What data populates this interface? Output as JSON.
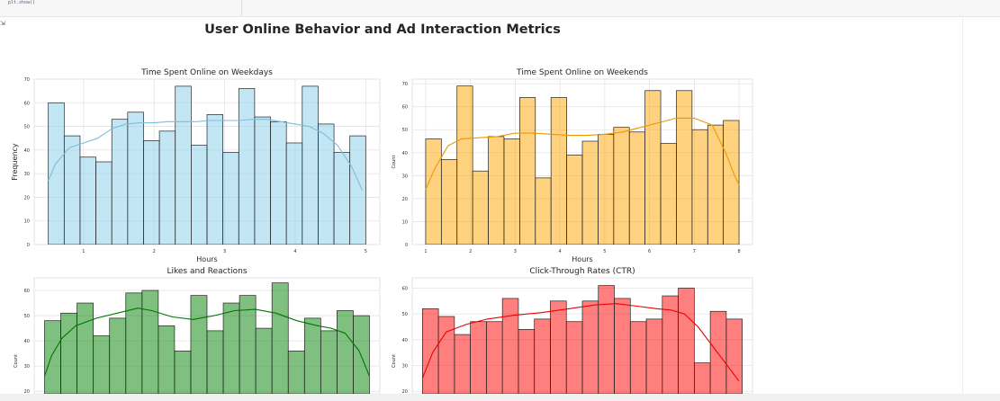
{
  "notebook": {
    "code_line": "plt.show()",
    "output_icon": "output-icon"
  },
  "figure": {
    "title": "User Online Behavior and Ad Interaction Metrics"
  },
  "colors": {
    "weekday": "#87ceeb",
    "weekend": "#ffa500",
    "likes": "#008000",
    "ctr": "#ff0000"
  },
  "chart_data": [
    {
      "type": "bar",
      "title": "Time Spent Online on Weekdays",
      "xlabel": "Hours",
      "ylabel": "Frequency",
      "xlim": [
        0.3,
        5.2
      ],
      "ylim": [
        0,
        70
      ],
      "xticks": [
        1,
        2,
        3,
        4,
        5
      ],
      "yticks": [
        0,
        10,
        20,
        30,
        40,
        50,
        60,
        70
      ],
      "bin_range": [
        0.5,
        5.0
      ],
      "values": [
        60,
        46,
        37,
        35,
        53,
        56,
        44,
        48,
        67,
        42,
        55,
        39,
        66,
        54,
        52,
        43,
        67,
        51,
        39,
        46
      ],
      "kde": [
        [
          0.5,
          27
        ],
        [
          0.6,
          34
        ],
        [
          0.8,
          41
        ],
        [
          1.0,
          43
        ],
        [
          1.2,
          45
        ],
        [
          1.4,
          49
        ],
        [
          1.6,
          51
        ],
        [
          1.8,
          51.5
        ],
        [
          2.0,
          51.5
        ],
        [
          2.2,
          52
        ],
        [
          2.4,
          52
        ],
        [
          2.6,
          52
        ],
        [
          2.8,
          52.5
        ],
        [
          3.0,
          52.5
        ],
        [
          3.2,
          52.5
        ],
        [
          3.4,
          53
        ],
        [
          3.6,
          53
        ],
        [
          3.8,
          52
        ],
        [
          4.0,
          51
        ],
        [
          4.2,
          50
        ],
        [
          4.4,
          47
        ],
        [
          4.6,
          42
        ],
        [
          4.8,
          33
        ],
        [
          4.95,
          23
        ]
      ],
      "color_key": "weekday",
      "grid": true
    },
    {
      "type": "bar",
      "title": "Time Spent Online on Weekends",
      "xlabel": "Hours",
      "ylabel": "Count",
      "xlim": [
        0.7,
        8.3
      ],
      "ylim": [
        0,
        72
      ],
      "xticks": [
        1,
        2,
        3,
        4,
        5,
        6,
        7,
        8
      ],
      "yticks": [
        0,
        10,
        20,
        30,
        40,
        50,
        60,
        70
      ],
      "bin_range": [
        1.0,
        8.0
      ],
      "values": [
        46,
        37,
        69,
        32,
        47,
        46,
        64,
        29,
        64,
        39,
        45,
        48,
        51,
        49,
        67,
        44,
        67,
        50,
        52,
        54
      ],
      "kde": [
        [
          1.0,
          24
        ],
        [
          1.2,
          33
        ],
        [
          1.5,
          43
        ],
        [
          1.8,
          46
        ],
        [
          2.2,
          46.5
        ],
        [
          2.6,
          47
        ],
        [
          3.0,
          48.5
        ],
        [
          3.4,
          48.5
        ],
        [
          3.8,
          48
        ],
        [
          4.2,
          47.5
        ],
        [
          4.6,
          47.5
        ],
        [
          5.0,
          48
        ],
        [
          5.4,
          49
        ],
        [
          5.8,
          51
        ],
        [
          6.2,
          53
        ],
        [
          6.6,
          55
        ],
        [
          7.0,
          55
        ],
        [
          7.4,
          52
        ],
        [
          7.7,
          40
        ],
        [
          7.9,
          30
        ],
        [
          8.0,
          26
        ]
      ],
      "color_key": "weekend",
      "grid": true
    },
    {
      "type": "bar",
      "title": "Likes and Reactions",
      "xlabel": "",
      "ylabel": "Count",
      "xlim": [
        0,
        100
      ],
      "ylim": [
        19,
        65
      ],
      "xticks": [],
      "yticks": [
        20,
        30,
        40,
        50,
        60
      ],
      "bin_range": [
        3,
        97
      ],
      "values": [
        48,
        51,
        55,
        42,
        49,
        59,
        60,
        46,
        36,
        58,
        44,
        55,
        58,
        45,
        63,
        36,
        49,
        44,
        52,
        50
      ],
      "kde": [
        [
          3,
          26
        ],
        [
          5,
          34
        ],
        [
          8,
          41
        ],
        [
          12,
          46
        ],
        [
          18,
          49
        ],
        [
          24,
          51
        ],
        [
          30,
          53
        ],
        [
          34,
          52
        ],
        [
          40,
          49.5
        ],
        [
          46,
          48.5
        ],
        [
          52,
          50
        ],
        [
          58,
          52
        ],
        [
          64,
          52.5
        ],
        [
          70,
          51
        ],
        [
          76,
          48
        ],
        [
          82,
          46
        ],
        [
          86,
          45
        ],
        [
          90,
          43
        ],
        [
          94,
          36
        ],
        [
          97,
          26
        ]
      ],
      "color_key": "likes",
      "grid": true
    },
    {
      "type": "bar",
      "title": "Click-Through Rates (CTR)",
      "xlabel": "",
      "ylabel": "Count",
      "xlim": [
        0,
        100
      ],
      "ylim": [
        19,
        64
      ],
      "xticks": [],
      "yticks": [
        20,
        30,
        40,
        50,
        60
      ],
      "bin_range": [
        3,
        97
      ],
      "values": [
        52,
        49,
        42,
        47,
        47,
        56,
        44,
        48,
        55,
        47,
        55,
        61,
        56,
        47,
        48,
        57,
        60,
        31,
        51,
        48
      ],
      "kde": [
        [
          3,
          25
        ],
        [
          6,
          35
        ],
        [
          10,
          43
        ],
        [
          16,
          46
        ],
        [
          22,
          48
        ],
        [
          30,
          49.5
        ],
        [
          38,
          50.5
        ],
        [
          46,
          52
        ],
        [
          54,
          53.5
        ],
        [
          60,
          54
        ],
        [
          66,
          53
        ],
        [
          72,
          52
        ],
        [
          76,
          51.5
        ],
        [
          80,
          50
        ],
        [
          84,
          45
        ],
        [
          88,
          38
        ],
        [
          92,
          31
        ],
        [
          96,
          24
        ]
      ],
      "color_key": "ctr",
      "grid": true
    }
  ]
}
